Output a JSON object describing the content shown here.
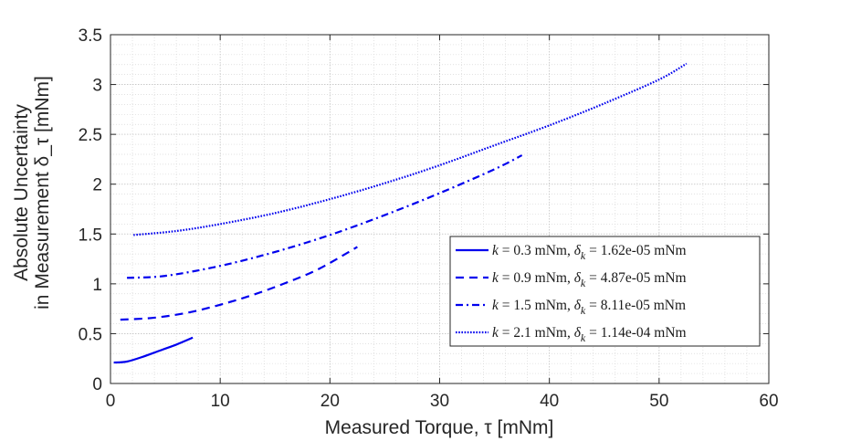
{
  "chart_data": {
    "type": "line",
    "xlabel": "Measured Torque, τ  [mNm]",
    "ylabel_line1": "Absolute Uncertainty",
    "ylabel_line2": "in Measurement δ_τ [mNm]",
    "xlim": [
      0,
      60
    ],
    "ylim": [
      0,
      3.5
    ],
    "xticks": [
      0,
      10,
      20,
      30,
      40,
      50,
      60
    ],
    "yticks": [
      0,
      0.5,
      1,
      1.5,
      2,
      2.5,
      3,
      3.5
    ],
    "xtick_labels": [
      "0",
      "10",
      "20",
      "30",
      "40",
      "50",
      "60"
    ],
    "ytick_labels": [
      "0",
      "0.5",
      "1",
      "1.5",
      "2",
      "2.5",
      "3",
      "3.5"
    ],
    "grid": true,
    "minor_grid": true,
    "legend_position": "lower-right",
    "line_color": "#0000ee",
    "series": [
      {
        "name": "k = 0.3 mNm, δ_k = 1.62e-05 mNm",
        "style": "solid",
        "x": [
          0.3,
          1.5,
          3,
          4.5,
          6,
          7.5
        ],
        "y": [
          0.21,
          0.22,
          0.27,
          0.33,
          0.39,
          0.46
        ]
      },
      {
        "name": "k = 0.9 mNm, δ_k = 4.87e-05 mNm",
        "style": "dashed",
        "x": [
          0.9,
          4,
          7,
          10,
          13,
          16,
          19,
          22.5
        ],
        "y": [
          0.64,
          0.66,
          0.71,
          0.79,
          0.89,
          1.01,
          1.15,
          1.37
        ]
      },
      {
        "name": "k = 1.5 mNm, δ_k = 8.11e-05 mNm",
        "style": "dashdot",
        "x": [
          1.5,
          5,
          10,
          15,
          20,
          25,
          30,
          35,
          37.5
        ],
        "y": [
          1.06,
          1.08,
          1.18,
          1.32,
          1.49,
          1.69,
          1.91,
          2.15,
          2.29
        ]
      },
      {
        "name": "k = 2.1 mNm, δ_k = 1.14e-04 mNm",
        "style": "dotted",
        "x": [
          2.1,
          6,
          10,
          15,
          20,
          25,
          30,
          35,
          40,
          45,
          50,
          52.5
        ],
        "y": [
          1.49,
          1.53,
          1.6,
          1.71,
          1.85,
          2.01,
          2.19,
          2.39,
          2.59,
          2.81,
          3.05,
          3.21
        ]
      }
    ],
    "legend_entries": [
      {
        "k": "0.3",
        "dk": "1.62e-05"
      },
      {
        "k": "0.9",
        "dk": "4.87e-05"
      },
      {
        "k": "1.5",
        "dk": "8.11e-05"
      },
      {
        "k": "2.1",
        "dk": "1.14e-04"
      }
    ],
    "legend_text": {
      "k_sym": "k",
      "eq": " = ",
      "unit_sep": " mNm, ",
      "delta_sym": "δ",
      "k_sub": "k",
      "unit_end": " mNm"
    }
  }
}
